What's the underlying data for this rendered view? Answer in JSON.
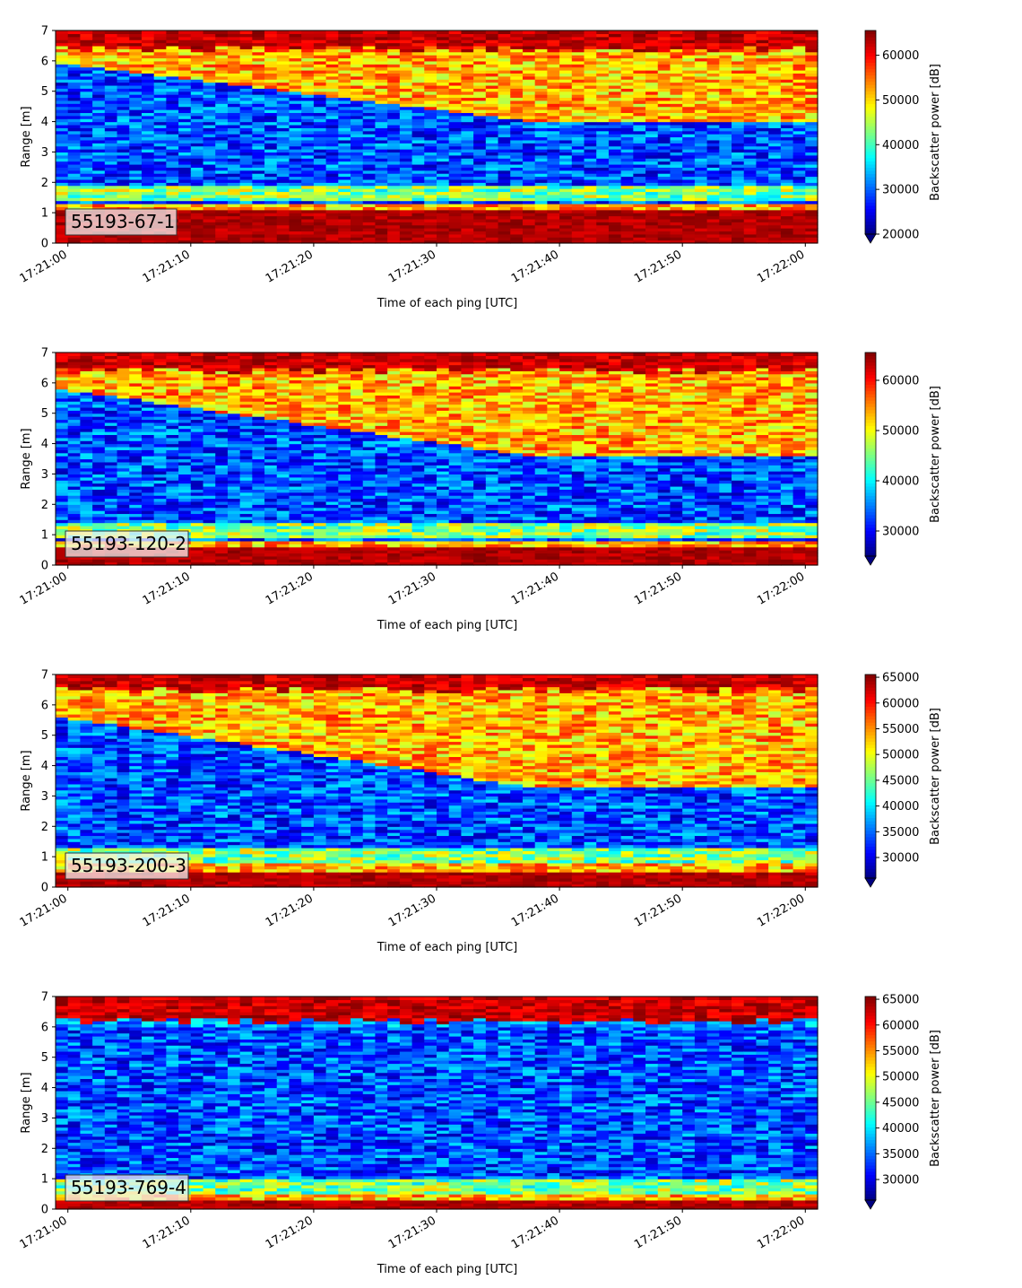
{
  "figure": {
    "type": "stacked-heatmaps",
    "colormap": "jet"
  },
  "chart_data": [
    {
      "type": "heatmap",
      "label": "55193-67-1",
      "xlabel": "Time of each ping [UTC]",
      "ylabel": "Range [m]",
      "x_tick_labels": [
        "17:21:00",
        "17:21:10",
        "17:21:20",
        "17:21:30",
        "17:21:40",
        "17:21:50",
        "17:22:00"
      ],
      "xlim_seconds": [
        -1,
        61
      ],
      "ylim": [
        0,
        7
      ],
      "y_ticks": [
        0,
        1,
        2,
        3,
        4,
        5,
        6,
        7
      ],
      "colorbar": {
        "label": "Backscatter power [dB]",
        "vmin": 20000,
        "vmax": 65535,
        "ticks": [
          20000,
          30000,
          40000,
          50000,
          60000
        ],
        "extend": "min"
      },
      "features": {
        "bottom_band_top": 1.1,
        "top_band_start": 6.4,
        "upper_layer_start": [
          5.9,
          4.0
        ],
        "echo_band": [
          1.4,
          1.9
        ]
      }
    },
    {
      "type": "heatmap",
      "label": "55193-120-2",
      "xlabel": "Time of each ping [UTC]",
      "ylabel": "Range [m]",
      "x_tick_labels": [
        "17:21:00",
        "17:21:10",
        "17:21:20",
        "17:21:30",
        "17:21:40",
        "17:21:50",
        "17:22:00"
      ],
      "xlim_seconds": [
        -1,
        61
      ],
      "ylim": [
        0,
        7
      ],
      "y_ticks": [
        0,
        1,
        2,
        3,
        4,
        5,
        6,
        7
      ],
      "colorbar": {
        "label": "Backscatter power [dB]",
        "vmin": 25000,
        "vmax": 65535,
        "ticks": [
          30000,
          40000,
          50000,
          60000
        ],
        "extend": "min"
      },
      "features": {
        "bottom_band_top": 0.6,
        "top_band_start": 6.4,
        "upper_layer_start": [
          5.8,
          3.6
        ],
        "echo_band": [
          0.9,
          1.4
        ]
      }
    },
    {
      "type": "heatmap",
      "label": "55193-200-3",
      "xlabel": "Time of each ping [UTC]",
      "ylabel": "Range [m]",
      "x_tick_labels": [
        "17:21:00",
        "17:21:10",
        "17:21:20",
        "17:21:30",
        "17:21:40",
        "17:21:50",
        "17:22:00"
      ],
      "xlim_seconds": [
        -1,
        61
      ],
      "ylim": [
        0,
        7
      ],
      "y_ticks": [
        0,
        1,
        2,
        3,
        4,
        5,
        6,
        7
      ],
      "colorbar": {
        "label": "Backscatter power [dB]",
        "vmin": 26000,
        "vmax": 65535,
        "ticks": [
          30000,
          35000,
          40000,
          45000,
          50000,
          55000,
          60000,
          65000
        ],
        "extend": "min"
      },
      "features": {
        "bottom_band_top": 0.55,
        "top_band_start": 6.5,
        "upper_layer_start": [
          5.6,
          3.3
        ],
        "echo_band": [
          0.8,
          1.3
        ]
      }
    },
    {
      "type": "heatmap",
      "label": "55193-769-4",
      "xlabel": "Time of each ping [UTC]",
      "ylabel": "Range [m]",
      "x_tick_labels": [
        "17:21:00",
        "17:21:10",
        "17:21:20",
        "17:21:30",
        "17:21:40",
        "17:21:50",
        "17:22:00"
      ],
      "xlim_seconds": [
        -1,
        61
      ],
      "ylim": [
        0,
        7
      ],
      "y_ticks": [
        0,
        1,
        2,
        3,
        4,
        5,
        6,
        7
      ],
      "colorbar": {
        "label": "Backscatter power [dB]",
        "vmin": 26000,
        "vmax": 65535,
        "ticks": [
          30000,
          35000,
          40000,
          45000,
          50000,
          55000,
          60000,
          65000
        ],
        "extend": "min"
      },
      "features": {
        "bottom_band_top": 0.3,
        "top_band_start": 6.2,
        "upper_layer_start": [
          6.0,
          6.0
        ],
        "echo_band": [
          0.4,
          1.0
        ]
      }
    }
  ]
}
